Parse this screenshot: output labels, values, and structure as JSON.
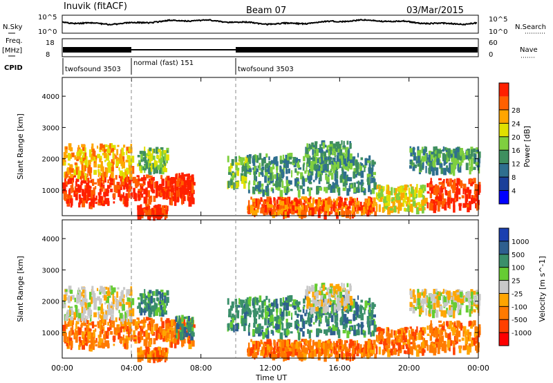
{
  "header": {
    "station": "Inuvik (fitACF)",
    "beam": "Beam 07",
    "date": "03/Mar/2015"
  },
  "noise_panel": {
    "left_label": "N.Sky",
    "right_label": "N.Search",
    "left_ticks": [
      "10^5",
      "10^0"
    ],
    "right_ticks": [
      "10^5",
      "10^0"
    ]
  },
  "freq_panel": {
    "left_label_1": "Freq.",
    "left_label_2": "[MHz]",
    "right_label": "Nave",
    "left_ticks": [
      "18",
      "8"
    ],
    "right_ticks": [
      "60",
      "0"
    ]
  },
  "cpid": {
    "label": "CPID",
    "segments": [
      {
        "name": "twofsound 3503",
        "start_hour": 0
      },
      {
        "name": "normal (fast) 151",
        "start_hour": 4
      },
      {
        "name": "twofsound 3503",
        "start_hour": 10
      }
    ]
  },
  "colors": {
    "power_scale": [
      "#0000ff",
      "#1a3f9a",
      "#2f6f8f",
      "#3f8f5f",
      "#7fcf3f",
      "#e0e000",
      "#ffa500",
      "#ff6000",
      "#ff2000"
    ],
    "velocity_scale": [
      "#1a3fb0",
      "#2f5f8f",
      "#3a8f6a",
      "#66cc33",
      "#c8c8c8",
      "#ffa500",
      "#ff7a00",
      "#ff4000",
      "#ff0000"
    ]
  },
  "chart_data": [
    {
      "type": "heatmap",
      "title": "Power",
      "xlabel": "Time UT",
      "ylabel": "Slant Range [km]",
      "x_ticks": [
        "00:00",
        "04:00",
        "08:00",
        "12:00",
        "16:00",
        "20:00",
        "00:00"
      ],
      "y_ticks": [
        1000,
        2000,
        3000,
        4000
      ],
      "ylim": [
        180,
        4600
      ],
      "xlim_hours": [
        0,
        24
      ],
      "colorbar": {
        "label": "Power [dB]",
        "ticks": [
          4,
          8,
          12,
          16,
          20,
          24,
          28
        ]
      }
    },
    {
      "type": "heatmap",
      "title": "Velocity",
      "xlabel": "Time UT",
      "ylabel": "Slant Range [km]",
      "x_ticks": [
        "00:00",
        "04:00",
        "08:00",
        "12:00",
        "16:00",
        "20:00",
        "00:00"
      ],
      "y_ticks": [
        1000,
        2000,
        3000,
        4000
      ],
      "ylim": [
        180,
        4600
      ],
      "xlim_hours": [
        0,
        24
      ],
      "colorbar": {
        "label": "Velocity [m s^-1]",
        "ticks": [
          1000,
          500,
          100,
          25,
          -25,
          -100,
          -500,
          -1000
        ]
      }
    }
  ]
}
